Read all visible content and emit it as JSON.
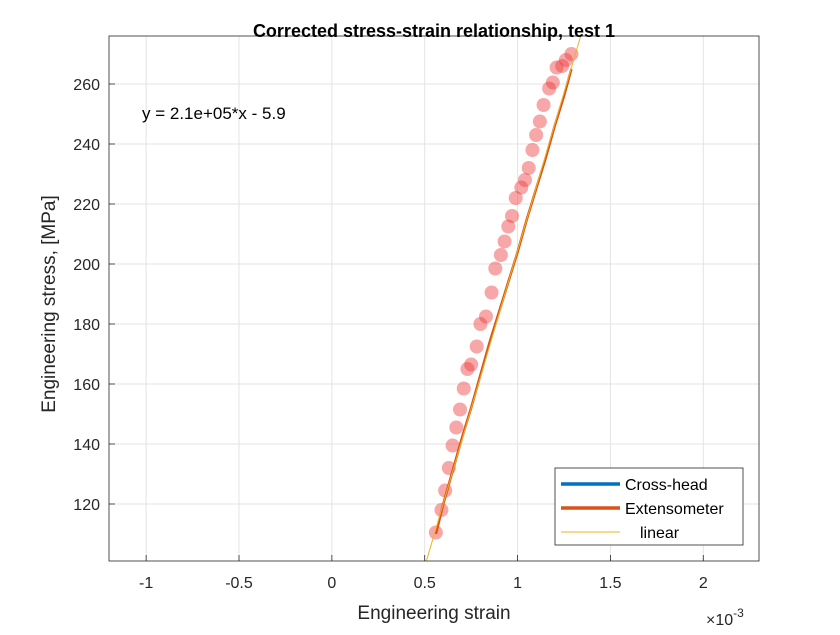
{
  "chart_data": {
    "type": "scatter",
    "title": "Corrected stress-strain relationship, test 1",
    "xlabel": "Engineering strain",
    "ylabel": "Engineering stress, [MPa]",
    "x_exponent_label": {
      "base": "×10",
      "exponent": "-3"
    },
    "xlim": [
      -1.2,
      2.3
    ],
    "ylim": [
      101,
      276
    ],
    "xticks": [
      -1,
      -0.5,
      0,
      0.5,
      1,
      1.5,
      2
    ],
    "xtick_labels": [
      "-1",
      "-0.5",
      "0",
      "0.5",
      "1",
      "1.5",
      "2"
    ],
    "yticks": [
      120,
      140,
      160,
      180,
      200,
      220,
      240,
      260
    ],
    "ytick_labels": [
      "120",
      "140",
      "160",
      "180",
      "200",
      "220",
      "240",
      "260"
    ],
    "grid": true,
    "legend_position": "bottom-right",
    "annotation": "y = 2.1e+05*x - 5.9",
    "fit": {
      "slope": 210000,
      "intercept": -5.9
    },
    "marker_points": {
      "x": [
        0.00056,
        0.00059,
        0.00061,
        0.00063,
        0.00065,
        0.00067,
        0.00069,
        0.00071,
        0.00073,
        0.00075,
        0.00078,
        0.0008,
        0.00083,
        0.00086,
        0.00088,
        0.00091,
        0.00093,
        0.00095,
        0.00097,
        0.00099,
        0.00102,
        0.00104,
        0.00106,
        0.00108,
        0.0011,
        0.00112,
        0.00114,
        0.00117,
        0.00119,
        0.00121,
        0.00124,
        0.00126,
        0.00129
      ],
      "y": [
        110.5,
        118,
        124.5,
        132,
        139.5,
        145.5,
        151.5,
        158.5,
        165,
        166.5,
        172.5,
        180,
        182.5,
        190.5,
        198.5,
        203,
        207.5,
        212.5,
        216,
        222,
        225.5,
        228,
        232,
        238,
        243,
        247.5,
        253,
        258.5,
        260.5,
        265.5,
        266,
        268,
        270
      ]
    },
    "series": [
      {
        "name": "Cross-head",
        "color": "#0072BD",
        "x": [],
        "y": []
      },
      {
        "name": "Extensometer",
        "color": "#D95319",
        "x": [
          0.00056,
          0.0006,
          0.00065,
          0.0007,
          0.00075,
          0.0008,
          0.00085,
          0.0009,
          0.00095,
          0.001,
          0.00105,
          0.0011,
          0.00115,
          0.0012,
          0.00125,
          0.00129
        ],
        "y": [
          110,
          120,
          131,
          142,
          152,
          163,
          174,
          184,
          194,
          204,
          215,
          225,
          235,
          246,
          256,
          265
        ]
      },
      {
        "name": "linear",
        "color": "#EDB120",
        "x": [
          0.000509,
          0.00134
        ],
        "y": [
          101,
          276
        ]
      }
    ]
  }
}
